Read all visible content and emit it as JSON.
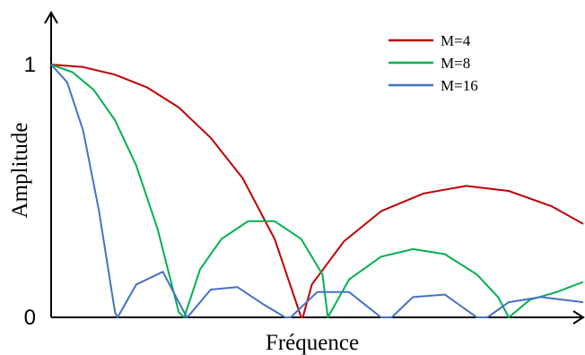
{
  "chart_data": {
    "type": "line",
    "title": "",
    "xlabel": "Fréquence",
    "ylabel": "Amplitude",
    "yticks": [
      {
        "value": 0,
        "label": "0"
      },
      {
        "value": 1,
        "label": "1"
      }
    ],
    "xlim": [
      0,
      1
    ],
    "ylim": [
      0,
      1
    ],
    "grid": false,
    "legend": "top-right",
    "series": [
      {
        "name": "M=4",
        "color": "#c00000",
        "x": [
          0,
          0.06,
          0.12,
          0.18,
          0.24,
          0.3,
          0.36,
          0.42,
          0.47,
          0.473,
          0.49,
          0.55,
          0.62,
          0.7,
          0.78,
          0.86,
          0.94,
          1.0
        ],
        "y": [
          1.0,
          0.99,
          0.96,
          0.91,
          0.83,
          0.71,
          0.55,
          0.31,
          0.0,
          0.0,
          0.13,
          0.3,
          0.42,
          0.49,
          0.52,
          0.5,
          0.44,
          0.37
        ]
      },
      {
        "name": "M=8",
        "color": "#00b050",
        "x": [
          0,
          0.04,
          0.08,
          0.12,
          0.16,
          0.2,
          0.24,
          0.25,
          0.28,
          0.32,
          0.37,
          0.42,
          0.47,
          0.51,
          0.52,
          0.56,
          0.62,
          0.68,
          0.74,
          0.8,
          0.84,
          0.86,
          0.9,
          0.95,
          1.0
        ],
        "y": [
          1.0,
          0.97,
          0.9,
          0.78,
          0.6,
          0.35,
          0.02,
          0.0,
          0.19,
          0.31,
          0.38,
          0.38,
          0.31,
          0.17,
          0.0,
          0.15,
          0.24,
          0.27,
          0.25,
          0.17,
          0.08,
          0.0,
          0.07,
          0.1,
          0.14
        ]
      },
      {
        "name": "M=16",
        "color": "#4472c4",
        "x": [
          0,
          0.03,
          0.06,
          0.09,
          0.12,
          0.125,
          0.16,
          0.21,
          0.255,
          0.26,
          0.3,
          0.35,
          0.4,
          0.44,
          0.45,
          0.5,
          0.56,
          0.62,
          0.64,
          0.68,
          0.74,
          0.8,
          0.82,
          0.86,
          0.92,
          1.0
        ],
        "y": [
          1.0,
          0.93,
          0.74,
          0.42,
          0.02,
          0.0,
          0.13,
          0.18,
          0.0,
          0.01,
          0.11,
          0.12,
          0.05,
          0.0,
          0.0,
          0.1,
          0.1,
          0.0,
          0.0,
          0.08,
          0.09,
          0.0,
          0.0,
          0.06,
          0.08,
          0.06
        ]
      }
    ]
  }
}
